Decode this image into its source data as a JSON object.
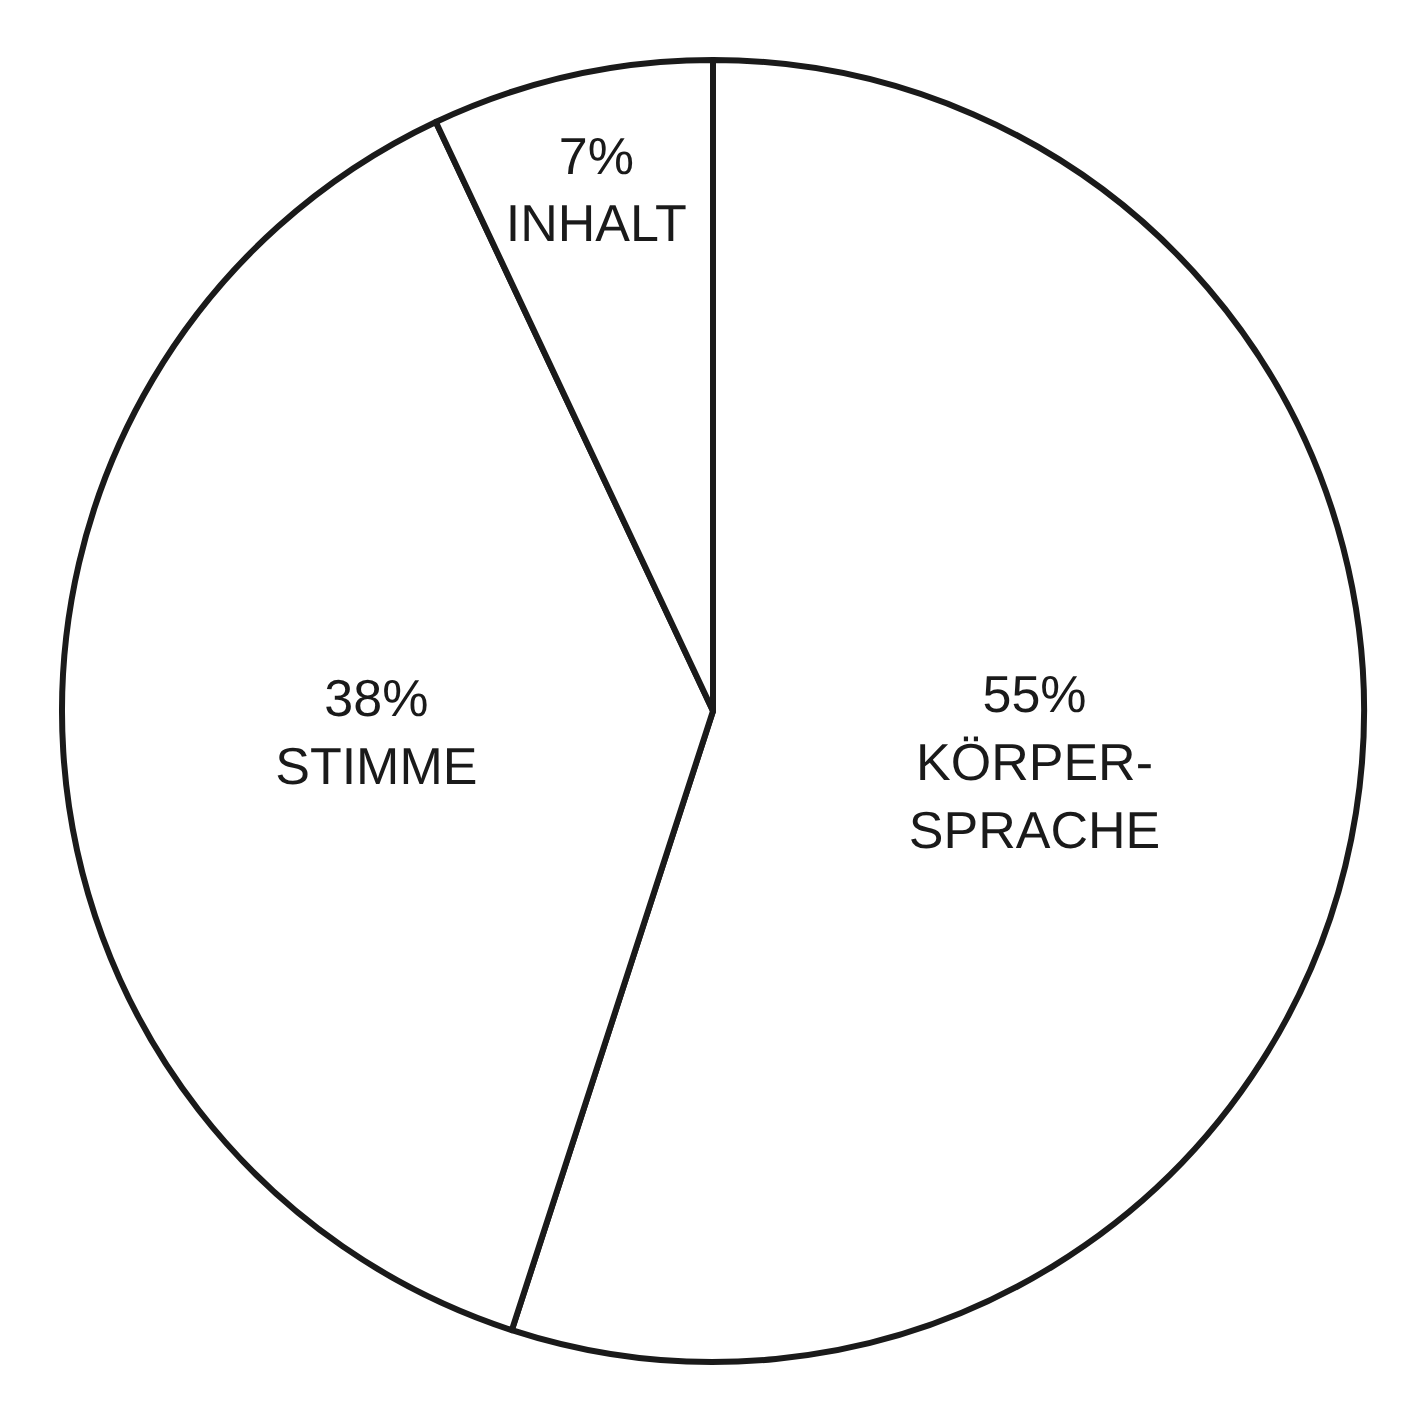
{
  "chart_data": {
    "type": "pie",
    "categories": [
      "KÖRPER-\nSPRACHE",
      "STIMME",
      "INHALT"
    ],
    "values": [
      55,
      38,
      7
    ],
    "value_labels": [
      "55%",
      "38%",
      "7%"
    ],
    "colors": [
      "#ffffff",
      "#ffffff",
      "#ffffff"
    ],
    "legend": false
  }
}
